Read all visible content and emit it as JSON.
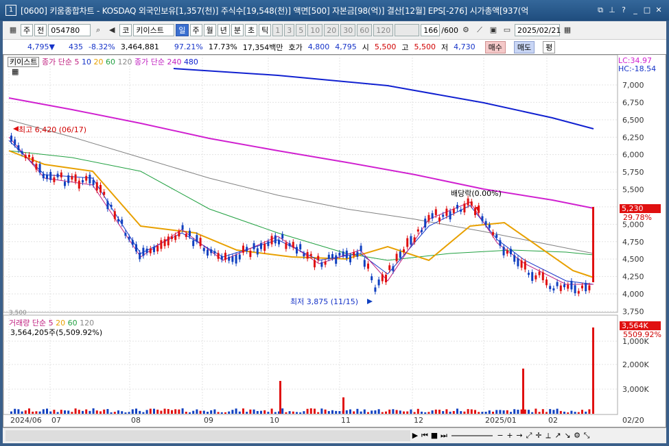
{
  "window": {
    "number": "1",
    "title": "[0600] 키움종합차트 - KOSDAQ 외국인보유[1,357(천)] 주식수[19,548(천)] 액면[500] 자본금[98(억)] 결산[12월] EPS[-276] 시가총액[937(억"
  },
  "toolbar": {
    "period": "주",
    "prev": "전",
    "code": "054780",
    "market": "코",
    "name": "키이스트",
    "tf": [
      "일",
      "주",
      "월",
      "년",
      "분",
      "초",
      "틱"
    ],
    "nums": [
      "1",
      "3",
      "5",
      "10",
      "20",
      "30",
      "60",
      "120"
    ],
    "count": "166",
    "total": "/600",
    "date": "2025/02/21"
  },
  "quote": {
    "price": "4,795",
    "arrow": "▼",
    "change": "435",
    "pct": "-8.32%",
    "volume": "3,464,881",
    "vol_ratio": "97.21%",
    "turnover": "17.73%",
    "amount": "17,354백만",
    "hoga_label": "호가",
    "ask": "4,800",
    "bid": "4,795",
    "open_label": "시",
    "open": "5,500",
    "high_label": "고",
    "high": "5,500",
    "low_label": "저",
    "low": "4,730",
    "buy": "매수",
    "sell": "매도",
    "avg": "평"
  },
  "chart": {
    "tag": "키이스트",
    "ma_label": "종가 단순 5",
    "ma_periods": [
      "10",
      "20",
      "60",
      "120"
    ],
    "ma_long_label": "종가 단순 240",
    "ma_long2": "480",
    "lc": "LC:34.97",
    "hc": "HC:-18.54",
    "high_note": "최고 6,420 (06/17)",
    "low_note": "최저 3,875 (11/15)",
    "divnote": "배당락(0.00%)",
    "price_box": "5,230",
    "price_pct": "29.78%",
    "cut": "3,500",
    "y_ticks": [
      "7,000",
      "6,750",
      "6,500",
      "6,250",
      "6,000",
      "5,750",
      "5,500",
      "5,250",
      "5,000",
      "4,750",
      "4,500",
      "4,250",
      "4,000",
      "3,750"
    ],
    "vol_label": "거래량 단순 5",
    "vol_periods": [
      "20",
      "60",
      "120"
    ],
    "vol_value": "3,564,205주(5,509.92%)",
    "vol_box": "3,564K",
    "vol_pct": "5509.92%",
    "vol_ticks": [
      "3,000K",
      "2,000K",
      "1,000K"
    ],
    "x_ticks": [
      "2024/06",
      "07",
      "08",
      "09",
      "10",
      "11",
      "12",
      "2025/01",
      "02"
    ],
    "x_end": "02/20"
  },
  "colors": {
    "ma5": "#c02080",
    "ma10": "#1533c8",
    "ma20": "#e8a000",
    "ma60": "#20a040",
    "ma120": "#808080",
    "ma240": "#d020d0",
    "ma480": "#1020d0",
    "up": "#e01010",
    "down": "#1040c0"
  }
}
